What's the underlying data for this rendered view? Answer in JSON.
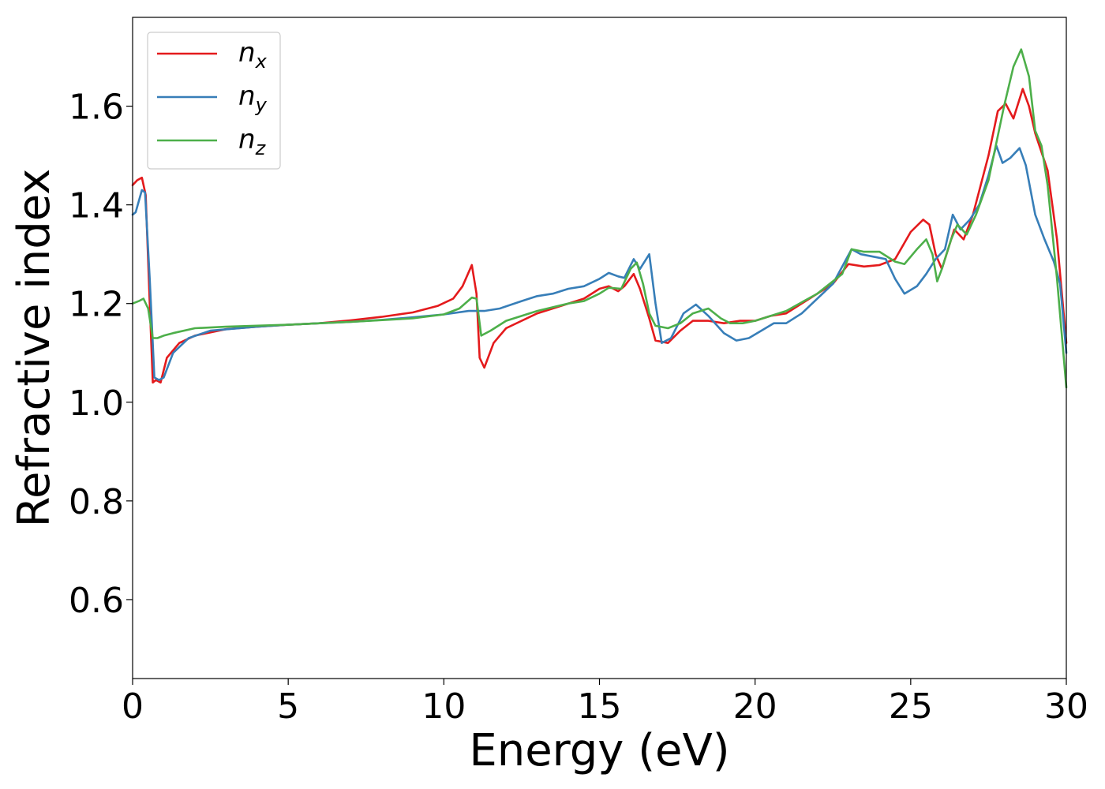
{
  "chart_data": {
    "type": "line",
    "title": "",
    "xlabel": "Energy (eV)",
    "ylabel": "Refractive index",
    "xlim": [
      0,
      30
    ],
    "ylim": [
      0.44,
      1.78
    ],
    "x_ticks": [
      0,
      5,
      10,
      15,
      20,
      25,
      30
    ],
    "x_tick_labels": [
      "0",
      "5",
      "10",
      "15",
      "20",
      "25",
      "30"
    ],
    "y_ticks": [
      0.6,
      0.8,
      1.0,
      1.2,
      1.4,
      1.6
    ],
    "y_tick_labels": [
      "0.6",
      "0.8",
      "1.0",
      "1.2",
      "1.4",
      "1.6"
    ],
    "grid": false,
    "legend": {
      "position": "top-left"
    },
    "series": [
      {
        "name": "n",
        "subscript": "x",
        "color": "#e41a1c",
        "points": [
          [
            0.0,
            1.44
          ],
          [
            0.15,
            1.45
          ],
          [
            0.3,
            1.455
          ],
          [
            0.42,
            1.42
          ],
          [
            0.55,
            1.2
          ],
          [
            0.65,
            1.04
          ],
          [
            0.75,
            1.045
          ],
          [
            0.9,
            1.04
          ],
          [
            1.1,
            1.09
          ],
          [
            1.5,
            1.12
          ],
          [
            2.0,
            1.135
          ],
          [
            3.0,
            1.148
          ],
          [
            4.0,
            1.153
          ],
          [
            5.0,
            1.157
          ],
          [
            6.0,
            1.16
          ],
          [
            7.0,
            1.166
          ],
          [
            8.0,
            1.173
          ],
          [
            9.0,
            1.182
          ],
          [
            9.8,
            1.195
          ],
          [
            10.3,
            1.21
          ],
          [
            10.6,
            1.235
          ],
          [
            10.9,
            1.278
          ],
          [
            11.05,
            1.22
          ],
          [
            11.15,
            1.09
          ],
          [
            11.3,
            1.07
          ],
          [
            11.6,
            1.12
          ],
          [
            12.0,
            1.15
          ],
          [
            13.0,
            1.18
          ],
          [
            14.0,
            1.2
          ],
          [
            14.5,
            1.21
          ],
          [
            15.0,
            1.23
          ],
          [
            15.3,
            1.235
          ],
          [
            15.6,
            1.225
          ],
          [
            15.8,
            1.235
          ],
          [
            16.1,
            1.26
          ],
          [
            16.3,
            1.23
          ],
          [
            16.6,
            1.17
          ],
          [
            16.8,
            1.125
          ],
          [
            17.2,
            1.12
          ],
          [
            17.6,
            1.145
          ],
          [
            18.0,
            1.165
          ],
          [
            18.5,
            1.165
          ],
          [
            19.0,
            1.16
          ],
          [
            19.5,
            1.165
          ],
          [
            20.0,
            1.165
          ],
          [
            20.5,
            1.175
          ],
          [
            21.0,
            1.18
          ],
          [
            21.5,
            1.2
          ],
          [
            22.5,
            1.24
          ],
          [
            23.0,
            1.28
          ],
          [
            23.5,
            1.275
          ],
          [
            24.0,
            1.278
          ],
          [
            24.5,
            1.29
          ],
          [
            25.0,
            1.345
          ],
          [
            25.4,
            1.37
          ],
          [
            25.6,
            1.36
          ],
          [
            25.8,
            1.3
          ],
          [
            26.0,
            1.27
          ],
          [
            26.2,
            1.31
          ],
          [
            26.4,
            1.35
          ],
          [
            26.7,
            1.33
          ],
          [
            27.0,
            1.38
          ],
          [
            27.5,
            1.5
          ],
          [
            27.8,
            1.59
          ],
          [
            28.05,
            1.605
          ],
          [
            28.3,
            1.575
          ],
          [
            28.6,
            1.635
          ],
          [
            28.8,
            1.6
          ],
          [
            29.0,
            1.545
          ],
          [
            29.4,
            1.47
          ],
          [
            29.7,
            1.33
          ],
          [
            30.0,
            1.12
          ]
        ]
      },
      {
        "name": "n",
        "subscript": "y",
        "color": "#377eb8",
        "points": [
          [
            0.0,
            1.38
          ],
          [
            0.1,
            1.385
          ],
          [
            0.3,
            1.43
          ],
          [
            0.4,
            1.425
          ],
          [
            0.55,
            1.25
          ],
          [
            0.7,
            1.05
          ],
          [
            0.85,
            1.045
          ],
          [
            1.0,
            1.05
          ],
          [
            1.3,
            1.1
          ],
          [
            1.8,
            1.13
          ],
          [
            2.5,
            1.145
          ],
          [
            4.0,
            1.153
          ],
          [
            5.0,
            1.157
          ],
          [
            6.0,
            1.16
          ],
          [
            7.0,
            1.163
          ],
          [
            8.0,
            1.167
          ],
          [
            9.0,
            1.172
          ],
          [
            10.0,
            1.178
          ],
          [
            10.8,
            1.185
          ],
          [
            11.3,
            1.185
          ],
          [
            11.8,
            1.19
          ],
          [
            12.5,
            1.205
          ],
          [
            13.0,
            1.215
          ],
          [
            13.5,
            1.22
          ],
          [
            14.0,
            1.23
          ],
          [
            14.5,
            1.235
          ],
          [
            15.0,
            1.25
          ],
          [
            15.3,
            1.262
          ],
          [
            15.6,
            1.255
          ],
          [
            15.8,
            1.252
          ],
          [
            16.1,
            1.29
          ],
          [
            16.3,
            1.27
          ],
          [
            16.6,
            1.3
          ],
          [
            16.8,
            1.2
          ],
          [
            17.0,
            1.12
          ],
          [
            17.3,
            1.13
          ],
          [
            17.7,
            1.18
          ],
          [
            18.1,
            1.198
          ],
          [
            18.5,
            1.175
          ],
          [
            19.0,
            1.14
          ],
          [
            19.4,
            1.125
          ],
          [
            19.8,
            1.13
          ],
          [
            20.2,
            1.145
          ],
          [
            20.6,
            1.16
          ],
          [
            21.0,
            1.16
          ],
          [
            21.5,
            1.18
          ],
          [
            22.5,
            1.24
          ],
          [
            23.1,
            1.31
          ],
          [
            23.4,
            1.3
          ],
          [
            23.8,
            1.295
          ],
          [
            24.2,
            1.29
          ],
          [
            24.5,
            1.25
          ],
          [
            24.8,
            1.22
          ],
          [
            25.2,
            1.235
          ],
          [
            25.5,
            1.26
          ],
          [
            25.8,
            1.29
          ],
          [
            26.1,
            1.31
          ],
          [
            26.35,
            1.38
          ],
          [
            26.6,
            1.35
          ],
          [
            26.9,
            1.37
          ],
          [
            27.2,
            1.4
          ],
          [
            27.5,
            1.46
          ],
          [
            27.75,
            1.52
          ],
          [
            27.95,
            1.485
          ],
          [
            28.2,
            1.495
          ],
          [
            28.5,
            1.515
          ],
          [
            28.7,
            1.48
          ],
          [
            29.0,
            1.38
          ],
          [
            29.3,
            1.33
          ],
          [
            29.6,
            1.285
          ],
          [
            29.8,
            1.24
          ],
          [
            30.0,
            1.1
          ]
        ]
      },
      {
        "name": "n",
        "subscript": "z",
        "color": "#4daf4a",
        "points": [
          [
            0.0,
            1.2
          ],
          [
            0.2,
            1.205
          ],
          [
            0.35,
            1.21
          ],
          [
            0.5,
            1.19
          ],
          [
            0.65,
            1.13
          ],
          [
            0.8,
            1.13
          ],
          [
            1.0,
            1.135
          ],
          [
            1.3,
            1.14
          ],
          [
            2.0,
            1.15
          ],
          [
            3.0,
            1.153
          ],
          [
            5.0,
            1.157
          ],
          [
            7.0,
            1.163
          ],
          [
            9.0,
            1.17
          ],
          [
            10.0,
            1.178
          ],
          [
            10.5,
            1.19
          ],
          [
            10.9,
            1.212
          ],
          [
            11.05,
            1.21
          ],
          [
            11.2,
            1.135
          ],
          [
            11.5,
            1.145
          ],
          [
            12.0,
            1.165
          ],
          [
            13.0,
            1.185
          ],
          [
            14.0,
            1.2
          ],
          [
            14.5,
            1.205
          ],
          [
            15.0,
            1.22
          ],
          [
            15.3,
            1.232
          ],
          [
            15.7,
            1.23
          ],
          [
            16.0,
            1.27
          ],
          [
            16.2,
            1.283
          ],
          [
            16.4,
            1.24
          ],
          [
            16.6,
            1.18
          ],
          [
            16.8,
            1.155
          ],
          [
            17.2,
            1.15
          ],
          [
            17.6,
            1.16
          ],
          [
            18.0,
            1.18
          ],
          [
            18.5,
            1.19
          ],
          [
            18.9,
            1.17
          ],
          [
            19.2,
            1.16
          ],
          [
            19.6,
            1.16
          ],
          [
            20.0,
            1.165
          ],
          [
            20.5,
            1.175
          ],
          [
            21.0,
            1.185
          ],
          [
            22.0,
            1.22
          ],
          [
            22.8,
            1.26
          ],
          [
            23.1,
            1.31
          ],
          [
            23.5,
            1.305
          ],
          [
            24.0,
            1.305
          ],
          [
            24.5,
            1.285
          ],
          [
            24.8,
            1.28
          ],
          [
            25.2,
            1.31
          ],
          [
            25.5,
            1.33
          ],
          [
            25.7,
            1.3
          ],
          [
            25.85,
            1.245
          ],
          [
            26.0,
            1.27
          ],
          [
            26.3,
            1.33
          ],
          [
            26.5,
            1.36
          ],
          [
            26.8,
            1.34
          ],
          [
            27.1,
            1.38
          ],
          [
            27.5,
            1.45
          ],
          [
            28.0,
            1.6
          ],
          [
            28.3,
            1.68
          ],
          [
            28.55,
            1.715
          ],
          [
            28.8,
            1.66
          ],
          [
            29.0,
            1.55
          ],
          [
            29.2,
            1.52
          ],
          [
            29.4,
            1.44
          ],
          [
            29.7,
            1.25
          ],
          [
            30.0,
            1.03
          ]
        ]
      }
    ]
  }
}
